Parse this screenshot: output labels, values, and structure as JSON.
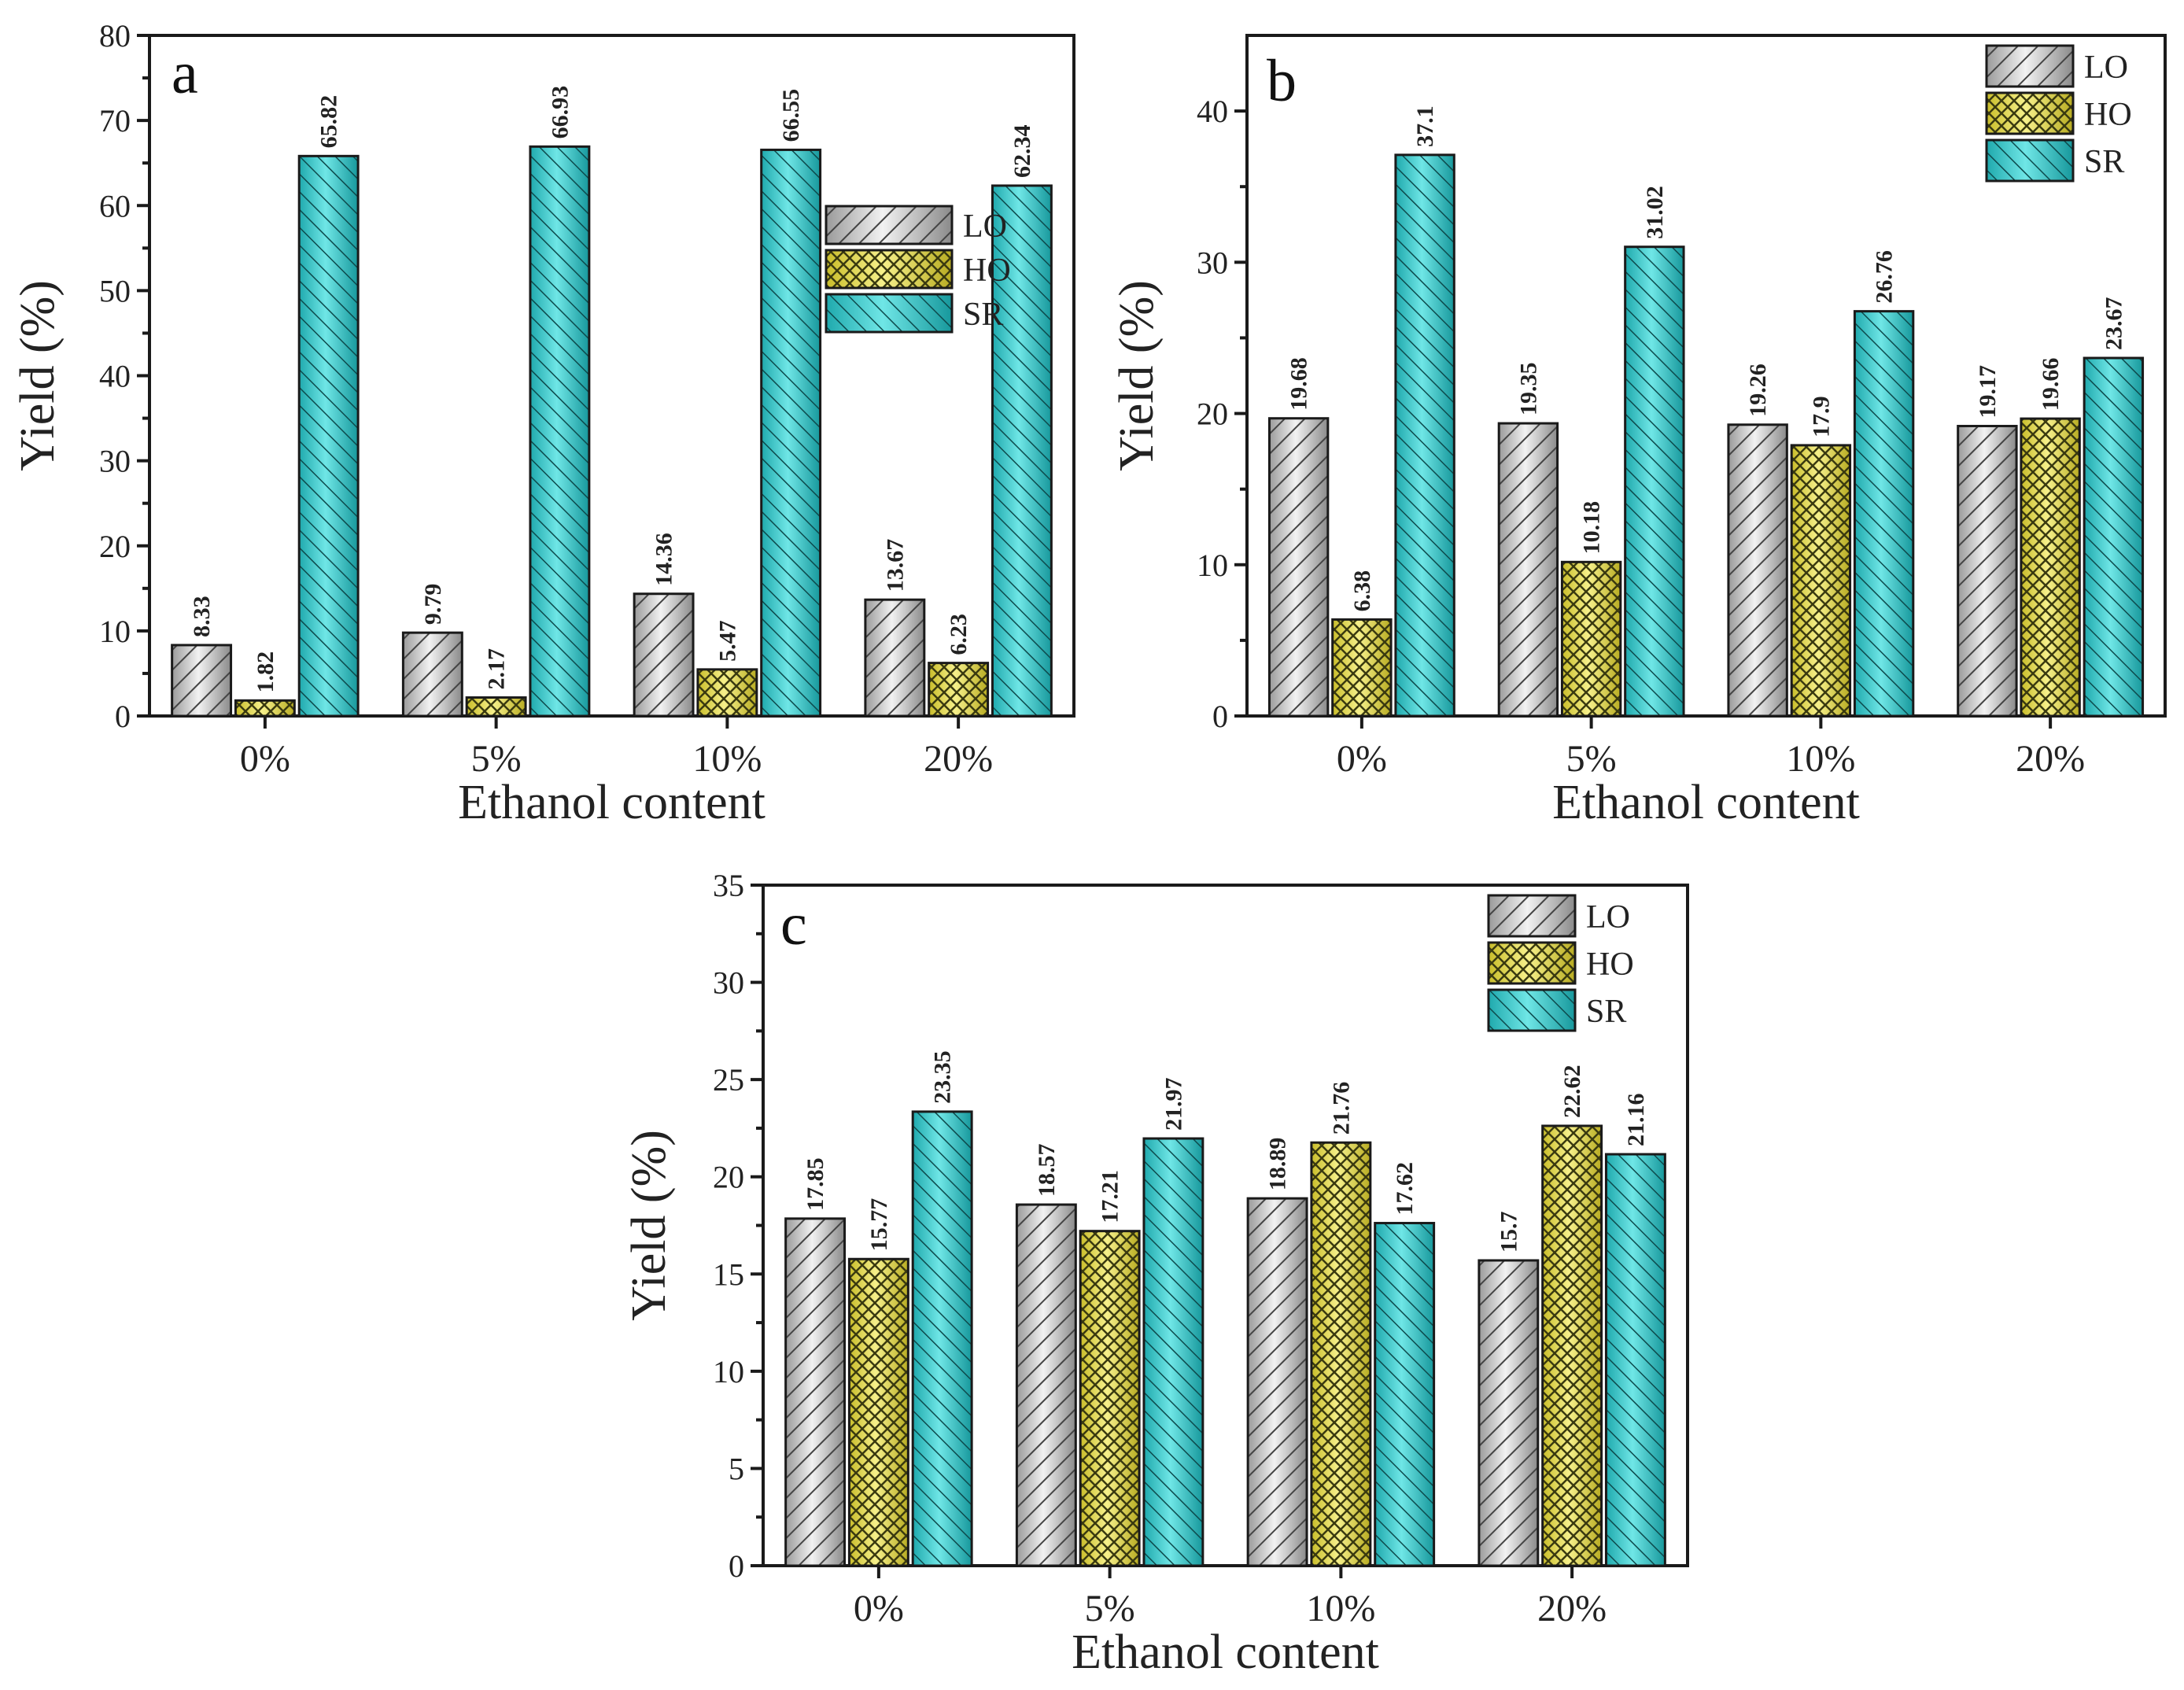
{
  "chart_data": [
    {
      "panel": "a",
      "type": "bar",
      "categories": [
        "0%",
        "5%",
        "10%",
        "20%"
      ],
      "series": [
        {
          "name": "LO",
          "values": [
            8.33,
            9.79,
            14.36,
            13.67
          ],
          "labels": [
            "8.33",
            "9.79",
            "14.36",
            "13.67"
          ]
        },
        {
          "name": "HO",
          "values": [
            1.82,
            2.17,
            5.47,
            6.23
          ],
          "labels": [
            "1.82",
            "2.17",
            "5.47",
            "6.23"
          ]
        },
        {
          "name": "SR",
          "values": [
            65.82,
            66.93,
            66.55,
            62.34
          ],
          "labels": [
            "65.82",
            "66.93",
            "66.55",
            "62.34"
          ]
        }
      ],
      "xlabel": "Ethanol content",
      "ylabel": "Yield (%)",
      "ylim": [
        0,
        80
      ],
      "yticks": [
        "0",
        "10",
        "20",
        "30",
        "40",
        "50",
        "60",
        "70",
        "80"
      ],
      "legend": "middle-right"
    },
    {
      "panel": "b",
      "type": "bar",
      "categories": [
        "0%",
        "5%",
        "10%",
        "20%"
      ],
      "series": [
        {
          "name": "LO",
          "values": [
            19.68,
            19.35,
            19.26,
            19.17
          ],
          "labels": [
            "19.68",
            "19.35",
            "19.26",
            "19.17"
          ]
        },
        {
          "name": "HO",
          "values": [
            6.38,
            10.18,
            17.9,
            19.66
          ],
          "labels": [
            "6.38",
            "10.18",
            "17.9",
            "19.66"
          ]
        },
        {
          "name": "SR",
          "values": [
            37.1,
            31.02,
            26.76,
            23.67
          ],
          "labels": [
            "37.1",
            "31.02",
            "26.76",
            "23.67"
          ]
        }
      ],
      "xlabel": "Ethanol content",
      "ylabel": "Yield (%)",
      "ylim": [
        0,
        45
      ],
      "yticks": [
        "0",
        "10",
        "20",
        "30",
        "40"
      ],
      "legend": "top-right"
    },
    {
      "panel": "c",
      "type": "bar",
      "categories": [
        "0%",
        "5%",
        "10%",
        "20%"
      ],
      "series": [
        {
          "name": "LO",
          "values": [
            17.85,
            18.57,
            18.89,
            15.7
          ],
          "labels": [
            "17.85",
            "18.57",
            "18.89",
            "15.7"
          ]
        },
        {
          "name": "HO",
          "values": [
            15.77,
            17.21,
            21.76,
            22.62
          ],
          "labels": [
            "15.77",
            "17.21",
            "21.76",
            "22.62"
          ]
        },
        {
          "name": "SR",
          "values": [
            23.35,
            21.97,
            17.62,
            21.16
          ],
          "labels": [
            "23.35",
            "21.97",
            "17.62",
            "21.16"
          ]
        }
      ],
      "xlabel": "Ethanol content",
      "ylabel": "Yield (%)",
      "ylim": [
        0,
        35
      ],
      "yticks": [
        "0",
        "5",
        "10",
        "15",
        "20",
        "25",
        "30",
        "35"
      ],
      "legend": "top-right"
    }
  ],
  "colors": {
    "LO": "#c8c8c8",
    "HO": "#e8e06a",
    "SR": "#33c8c8"
  }
}
